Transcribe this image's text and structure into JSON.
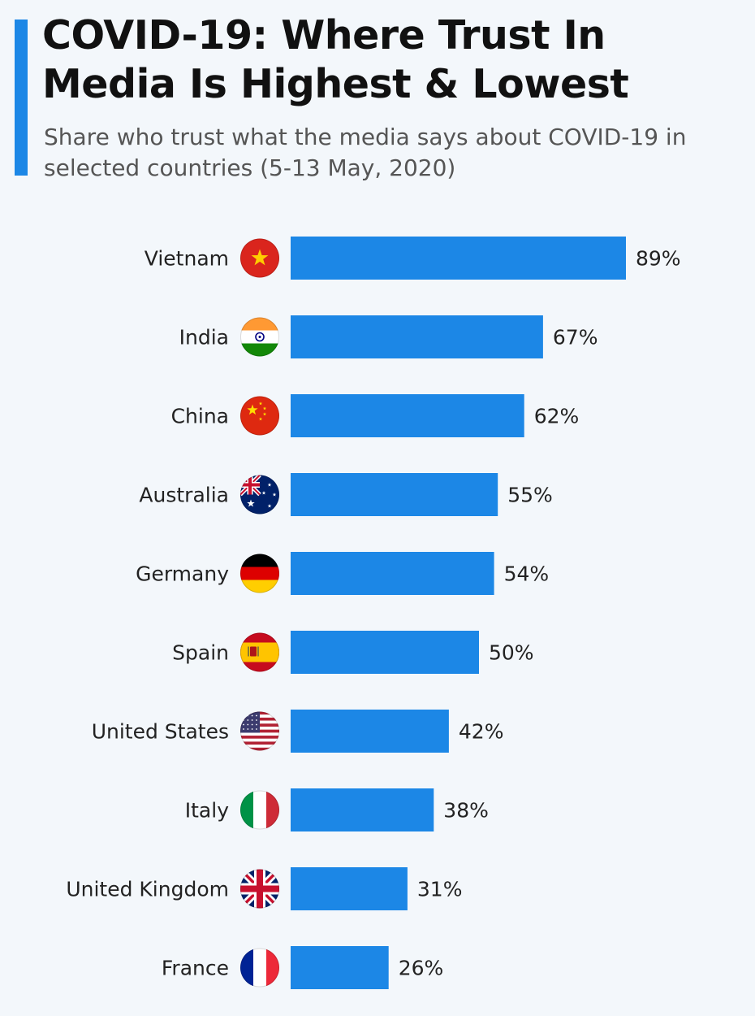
{
  "title": "COVID-19: Where Trust In Media Is Highest & Lowest",
  "subtitle": "Share who trust what the media says about COVID-19 in selected countries (5-13 May, 2020)",
  "colors": {
    "bar": "#1c87e6",
    "accent": "#1c87e6",
    "background": "#f3f7fb"
  },
  "chart_data": {
    "type": "bar",
    "orientation": "horizontal",
    "categories": [
      "Vietnam",
      "India",
      "China",
      "Australia",
      "Germany",
      "Spain",
      "United States",
      "Italy",
      "United Kingdom",
      "France"
    ],
    "values": [
      89,
      67,
      62,
      55,
      54,
      50,
      42,
      38,
      31,
      26
    ],
    "value_labels": [
      "89%",
      "67%",
      "62%",
      "55%",
      "54%",
      "50%",
      "42%",
      "38%",
      "31%",
      "26%"
    ],
    "flag_icons": [
      "vietnam-flag-icon",
      "india-flag-icon",
      "china-flag-icon",
      "australia-flag-icon",
      "germany-flag-icon",
      "spain-flag-icon",
      "united-states-flag-icon",
      "italy-flag-icon",
      "united-kingdom-flag-icon",
      "france-flag-icon"
    ],
    "xlim": [
      0,
      100
    ],
    "grid": false,
    "legend": "none"
  }
}
